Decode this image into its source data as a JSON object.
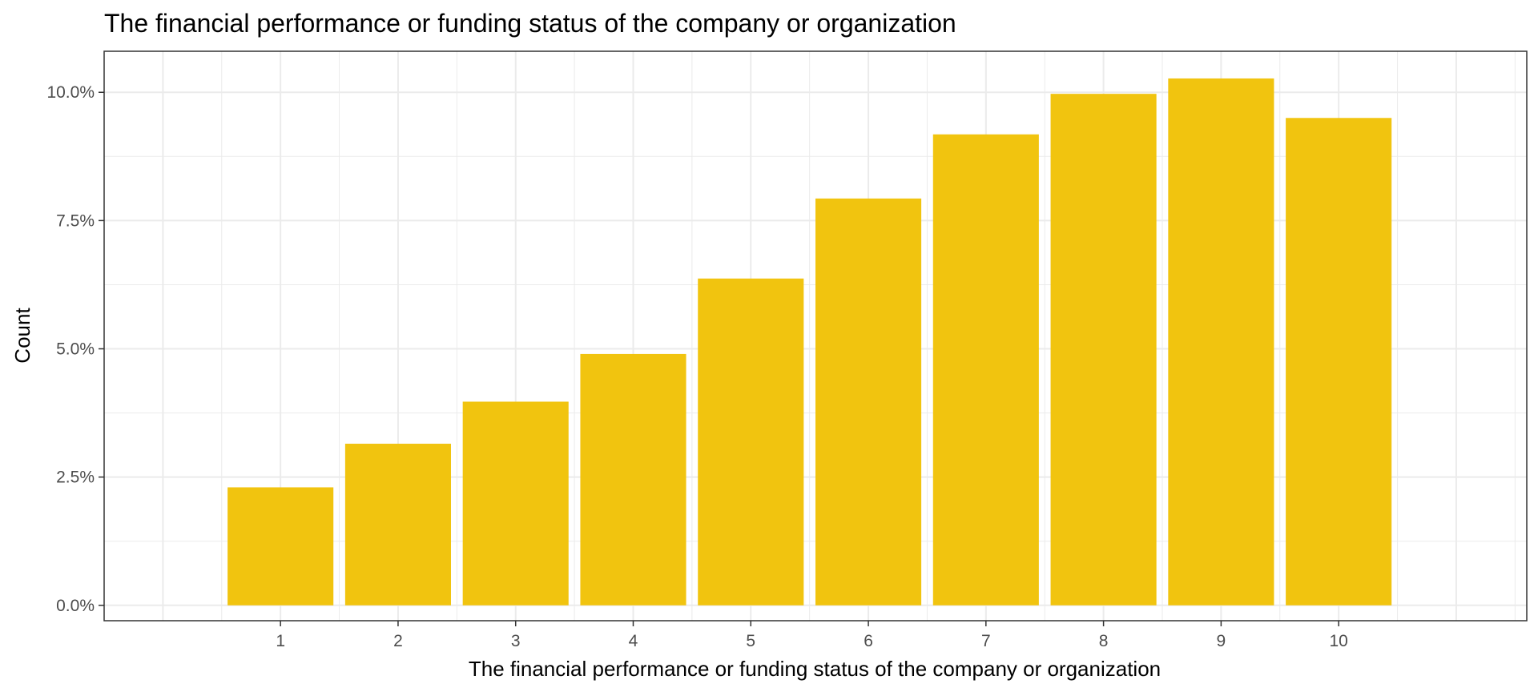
{
  "chart_data": {
    "type": "bar",
    "title": "The financial performance or funding status of the company or organization",
    "xlabel": "The financial performance or funding status of the company or organization",
    "ylabel": "Count",
    "categories": [
      "1",
      "2",
      "3",
      "4",
      "5",
      "6",
      "7",
      "8",
      "9",
      "10"
    ],
    "values": [
      2.3,
      3.15,
      3.97,
      4.9,
      6.37,
      7.93,
      9.18,
      9.97,
      10.27,
      9.5
    ],
    "value_unit": "percent",
    "ylim": [
      -0.3,
      10.8
    ],
    "xlim": [
      -0.5,
      11.6
    ],
    "y_ticks": [
      0,
      2.5,
      5,
      7.5,
      10
    ],
    "y_tick_labels": [
      "0.0%",
      "2.5%",
      "5.0%",
      "7.5%",
      "10.0%"
    ],
    "x_tick_labels": [
      "1",
      "2",
      "3",
      "4",
      "5",
      "6",
      "7",
      "8",
      "9",
      "10"
    ],
    "grid": true,
    "legend": "none",
    "colors": {
      "bar": "#F1C40F",
      "grid": "#ebebeb",
      "panel_border": "#333333",
      "background": "#ffffff"
    }
  }
}
